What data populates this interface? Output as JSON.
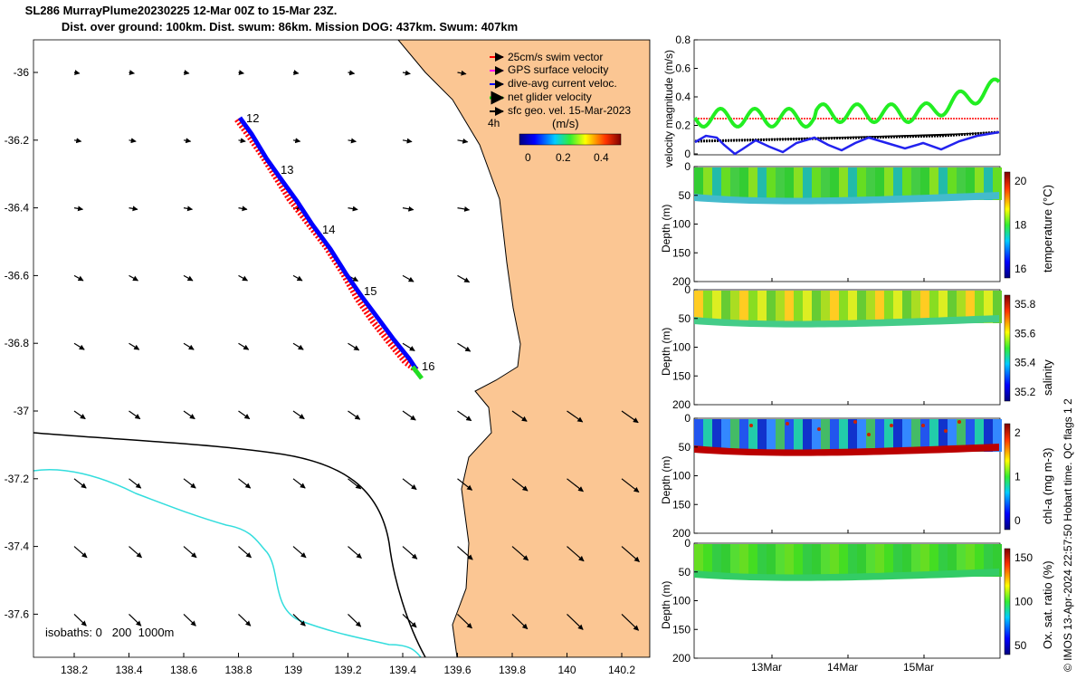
{
  "title": {
    "line1": "SL286 MurrayPlume20230225 12-Mar 00Z to 15-Mar 23Z.",
    "line2": "Dist. over ground: 100km. Dist. swum: 86km. Mission DOG: 437km. Swum: 407km"
  },
  "map": {
    "lon_ticks": [
      "138.2",
      "138.4",
      "138.6",
      "138.8",
      "139",
      "139.2",
      "139.4",
      "139.6",
      "139.8",
      "140",
      "140.2"
    ],
    "lat_ticks": [
      "-36",
      "-36.2",
      "-36.4",
      "-36.6",
      "-36.8",
      "-37",
      "-37.2",
      "-37.4",
      "-37.6"
    ],
    "legend": [
      {
        "label": "25cm/s swim vector",
        "color": "#ff0000"
      },
      {
        "label": "GPS surface velocity",
        "color": "#ff00ff"
      },
      {
        "label": "dive-avg current veloc.",
        "color": "#0000ff"
      },
      {
        "label": "net glider velocity",
        "color": "#00dd00"
      },
      {
        "label": "sfc geo. vel. 15-Mar-2023",
        "color": "#000000"
      }
    ],
    "colorbar": {
      "unit": "(m/s)",
      "ticks": [
        "0",
        "0.2",
        "0.4"
      ],
      "interval_label": "4h"
    },
    "day_labels": [
      "12",
      "13",
      "14",
      "15",
      "16"
    ],
    "isobaths_label": "isobaths: 0   200  1000m",
    "colors": {
      "land": "#fbc693",
      "track": "#0000ff",
      "swim": "#ff0000",
      "isobath200": "#000000",
      "isobath1000": "#33dddd"
    }
  },
  "velocity_panel": {
    "ylabel": "velocity magnitude (m/s)",
    "yticks": [
      "0",
      "0.2",
      "0.4",
      "0.6",
      "0.8"
    ]
  },
  "sections": [
    {
      "label": "temperature (°C)",
      "ticks": [
        "16",
        "18",
        "20"
      ]
    },
    {
      "label": "salinity",
      "ticks": [
        "35.2",
        "35.4",
        "35.6",
        "35.8"
      ]
    },
    {
      "label": "chl-a (mg m-3)",
      "ticks": [
        "0",
        "1",
        "2"
      ]
    },
    {
      "label": "Ox. sat. ratio (%)",
      "ticks": [
        "50",
        "100",
        "150"
      ]
    }
  ],
  "depth_axis": {
    "label": "Depth (m)",
    "ticks": [
      "0",
      "50",
      "100",
      "150",
      "200"
    ]
  },
  "time_ticks": [
    "13Mar",
    "14Mar",
    "15Mar"
  ],
  "credit": "© IMOS 13-Apr-2024 22:57:50 Hobart time. QC flags 1  2"
}
